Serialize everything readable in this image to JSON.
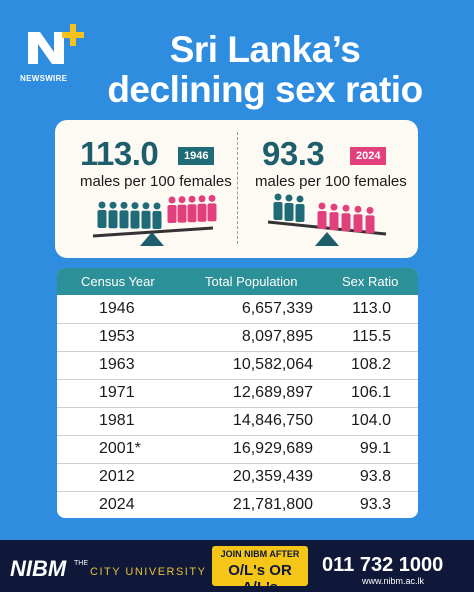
{
  "logo": {
    "text": "NEWSWIRE"
  },
  "header": {
    "title_line1": "Sri Lanka’s",
    "title_line2": "declining sex ratio"
  },
  "comparison": [
    {
      "ratio": "113.0",
      "year": "1946",
      "caption": "males per 100 females"
    },
    {
      "ratio": "93.3",
      "year": "2024",
      "caption": "males per 100 females"
    }
  ],
  "table": {
    "columns": [
      "Census Year",
      "Total Population",
      "Sex Ratio"
    ],
    "rows": [
      [
        "1946",
        "6,657,339",
        "113.0"
      ],
      [
        "1953",
        "8,097,895",
        "115.5"
      ],
      [
        "1963",
        "10,582,064",
        "108.2"
      ],
      [
        "1971",
        "12,689,897",
        "106.1"
      ],
      [
        "1981",
        "14,846,750",
        "104.0"
      ],
      [
        "2001*",
        "16,929,689",
        "99.1"
      ],
      [
        "2012",
        "20,359,439",
        "93.8"
      ],
      [
        "2024",
        "21,781,800",
        "93.3"
      ]
    ]
  },
  "footer": {
    "brand": "NIBM",
    "tagline_top": "THE",
    "tagline": "CITY UNIVERSITY",
    "promo_line1": "JOIN NIBM AFTER",
    "promo_line2": "O/L's OR A/L's",
    "phone": "011 732 1000",
    "website": "www.nibm.ac.lk"
  }
}
